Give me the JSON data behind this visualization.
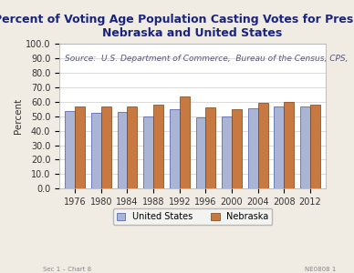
{
  "title_line1": "Percent of Voting Age Population Casting Votes for President,",
  "title_line2": "Nebraska and United States",
  "ylabel": "Percent",
  "source_text": "Source:  U.S. Department of Commerce,  Bureau of the Census, CPS,",
  "years": [
    1976,
    1980,
    1984,
    1988,
    1992,
    1996,
    2000,
    2004,
    2008,
    2012
  ],
  "us_values": [
    53.5,
    52.5,
    53.0,
    50.0,
    55.0,
    49.0,
    50.0,
    55.5,
    57.0,
    56.5
  ],
  "ne_values": [
    56.5,
    57.0,
    57.0,
    58.0,
    63.5,
    56.0,
    55.0,
    59.5,
    60.0,
    58.0
  ],
  "us_color": "#aab4d4",
  "ne_color": "#c87941",
  "us_edge": "#4455aa",
  "ne_edge": "#7a4010",
  "ylim": [
    0,
    100
  ],
  "yticks": [
    0.0,
    10.0,
    20.0,
    30.0,
    40.0,
    50.0,
    60.0,
    70.0,
    80.0,
    90.0,
    100.0
  ],
  "bar_width": 0.38,
  "title_fontsize": 9,
  "label_fontsize": 7.5,
  "tick_fontsize": 7,
  "source_fontsize": 6.5,
  "legend_fontsize": 7,
  "ylabel_fontsize": 7.5,
  "footer_left": "Sec 1 – Chart 8",
  "footer_right": "NE0808 1",
  "bg_color": "#f0ece4",
  "plot_bg": "#ffffff",
  "title_color": "#1a237e",
  "axis_color": "#555555"
}
